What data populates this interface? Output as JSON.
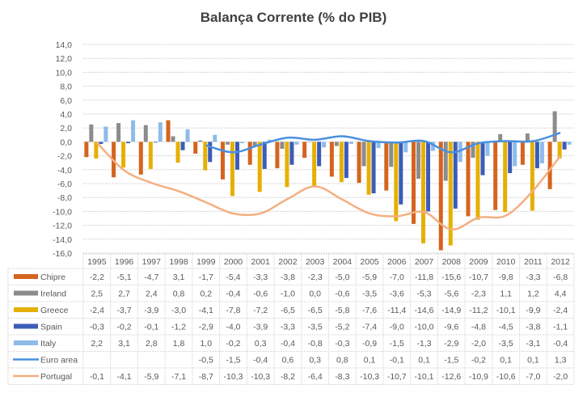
{
  "chart_data": {
    "type": "bar",
    "title": "Balança Corrente (% do PIB)",
    "xlabel": "",
    "ylabel": "",
    "ylim": [
      -16,
      14
    ],
    "ytick_step": 2,
    "ytick_labels": [
      "14,0",
      "12,0",
      "10,0",
      "8,0",
      "6,0",
      "4,0",
      "2,0",
      "0,0",
      "-2,0",
      "-4,0",
      "-6,0",
      "-8,0",
      "-10,0",
      "-12,0",
      "-14,0",
      "-16,0"
    ],
    "grid": true,
    "legend": "data-table",
    "categories": [
      "1995",
      "1996",
      "1997",
      "1998",
      "1999",
      "2000",
      "2001",
      "2002",
      "2003",
      "2004",
      "2005",
      "2006",
      "2007",
      "2008",
      "2009",
      "2010",
      "2011",
      "2012"
    ],
    "series": [
      {
        "name": "Chipre",
        "kind": "bar",
        "color": "#D5641F",
        "values": [
          -2.2,
          -5.1,
          -4.7,
          3.1,
          -1.7,
          -5.4,
          -3.3,
          -3.8,
          -2.3,
          -5.0,
          -5.9,
          -7.0,
          -11.8,
          -15.6,
          -10.7,
          -9.8,
          -3.3,
          -6.8
        ]
      },
      {
        "name": "Ireland",
        "kind": "bar",
        "color": "#8C8C8C",
        "values": [
          2.5,
          2.7,
          2.4,
          0.8,
          0.2,
          -0.4,
          -0.6,
          -1.0,
          0.0,
          -0.6,
          -3.5,
          -3.6,
          -5.3,
          -5.6,
          -2.3,
          1.1,
          1.2,
          4.4
        ]
      },
      {
        "name": "Greece",
        "kind": "bar",
        "color": "#E6B000",
        "values": [
          -2.4,
          -3.7,
          -3.9,
          -3.0,
          -4.1,
          -7.8,
          -7.2,
          -6.5,
          -6.5,
          -5.8,
          -7.6,
          -11.4,
          -14.6,
          -14.9,
          -11.2,
          -10.1,
          -9.9,
          -2.4
        ]
      },
      {
        "name": "Spain",
        "kind": "bar",
        "color": "#3B5CB8",
        "values": [
          -0.3,
          -0.2,
          -0.1,
          -1.2,
          -2.9,
          -4.0,
          -3.9,
          -3.3,
          -3.5,
          -5.2,
          -7.4,
          -9.0,
          -10.0,
          -9.6,
          -4.8,
          -4.5,
          -3.8,
          -1.1
        ]
      },
      {
        "name": "Italy",
        "kind": "bar",
        "color": "#8EBBEA",
        "values": [
          2.2,
          3.1,
          2.8,
          1.8,
          1.0,
          -0.2,
          0.3,
          -0.4,
          -0.8,
          -0.3,
          -0.9,
          -1.5,
          -1.3,
          -2.9,
          -2.0,
          -3.5,
          -3.1,
          -0.4
        ]
      },
      {
        "name": "Euro area",
        "kind": "line",
        "color": "#4A8FDF",
        "values": [
          null,
          null,
          null,
          null,
          -0.5,
          -1.5,
          -0.4,
          0.6,
          0.3,
          0.8,
          0.1,
          -0.1,
          0.1,
          -1.5,
          -0.2,
          0.1,
          0.1,
          1.3
        ]
      },
      {
        "name": "Portugal",
        "kind": "line",
        "color": "#F4AF80",
        "values": [
          -0.1,
          -4.1,
          -5.9,
          -7.1,
          -8.7,
          -10.3,
          -10.3,
          -8.2,
          -6.4,
          -8.3,
          -10.3,
          -10.7,
          -10.1,
          -12.6,
          -10.9,
          -10.6,
          -7.0,
          -2.0
        ]
      }
    ]
  }
}
